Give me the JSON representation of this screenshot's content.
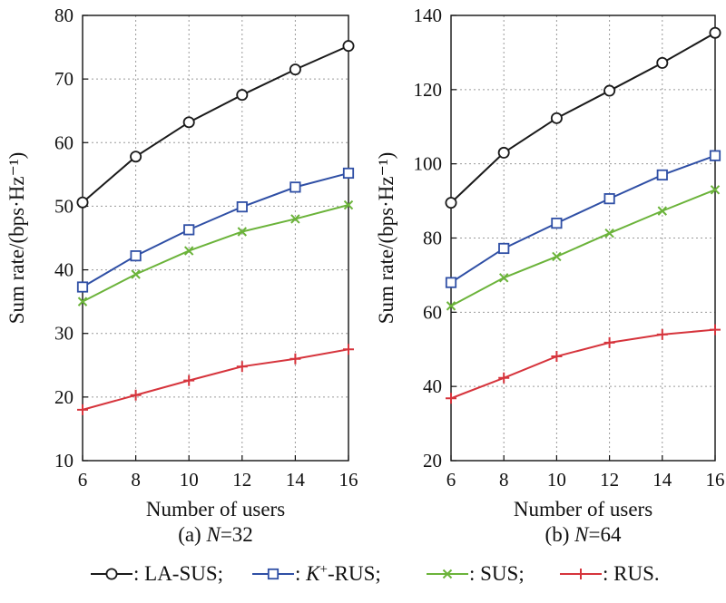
{
  "chart_data": [
    {
      "type": "line",
      "caption_prefix": "(a) ",
      "caption_var": "N",
      "caption_value": "=32",
      "xlabel": "Number of users",
      "ylabel": "Sum rate/(bps·Hz⁻¹)",
      "x": [
        6,
        8,
        10,
        12,
        14,
        16
      ],
      "xlim": [
        6,
        16
      ],
      "ylim": [
        10,
        80
      ],
      "yticks": [
        10,
        20,
        30,
        40,
        50,
        60,
        70,
        80
      ],
      "grid": true,
      "series": [
        {
          "name": "LA-SUS",
          "values": [
            50.6,
            57.8,
            63.2,
            67.5,
            71.5,
            75.2
          ]
        },
        {
          "name": "K+-RUS",
          "values": [
            37.3,
            42.2,
            46.3,
            49.9,
            53.0,
            55.2
          ]
        },
        {
          "name": "SUS",
          "values": [
            35.0,
            39.3,
            43.0,
            46.0,
            48.0,
            50.2
          ]
        },
        {
          "name": "RUS",
          "values": [
            18.0,
            20.3,
            22.6,
            24.8,
            26.0,
            27.5
          ]
        }
      ]
    },
    {
      "type": "line",
      "caption_prefix": "(b) ",
      "caption_var": "N",
      "caption_value": "=64",
      "xlabel": "Number of users",
      "ylabel": "Sum rate/(bps·Hz⁻¹)",
      "x": [
        6,
        8,
        10,
        12,
        14,
        16
      ],
      "xlim": [
        6,
        16
      ],
      "ylim": [
        20,
        140
      ],
      "yticks": [
        20,
        40,
        60,
        80,
        100,
        120,
        140
      ],
      "grid": true,
      "series": [
        {
          "name": "LA-SUS",
          "values": [
            89.5,
            103.0,
            112.3,
            119.7,
            127.2,
            135.3
          ]
        },
        {
          "name": "K+-RUS",
          "values": [
            68.0,
            77.2,
            84.0,
            90.6,
            97.0,
            102.2
          ]
        },
        {
          "name": "SUS",
          "values": [
            61.7,
            69.3,
            75.0,
            81.3,
            87.3,
            93.0
          ]
        },
        {
          "name": "RUS",
          "values": [
            36.8,
            42.3,
            48.1,
            51.8,
            54.0,
            55.3
          ]
        }
      ]
    }
  ],
  "legend": {
    "placement": "bottom",
    "items": [
      {
        "marker": "circle",
        "color": "#1a1a1a",
        "prefix": ": ",
        "italic": "",
        "sup": "",
        "text": "LA-SUS;"
      },
      {
        "marker": "square",
        "color": "#2f4fa5",
        "prefix": ": ",
        "italic": "K",
        "sup": "+",
        "text": "-RUS;"
      },
      {
        "marker": "x",
        "color": "#6bb33a",
        "prefix": ": ",
        "italic": "",
        "sup": "",
        "text": "SUS;"
      },
      {
        "marker": "plus",
        "color": "#d6343c",
        "prefix": ": ",
        "italic": "",
        "sup": "",
        "text": "RUS."
      }
    ]
  },
  "colors": {
    "LA-SUS": "#1a1a1a",
    "K+-RUS": "#2f4fa5",
    "SUS": "#6bb33a",
    "RUS": "#d6343c",
    "grid": "#9a9a9a"
  }
}
